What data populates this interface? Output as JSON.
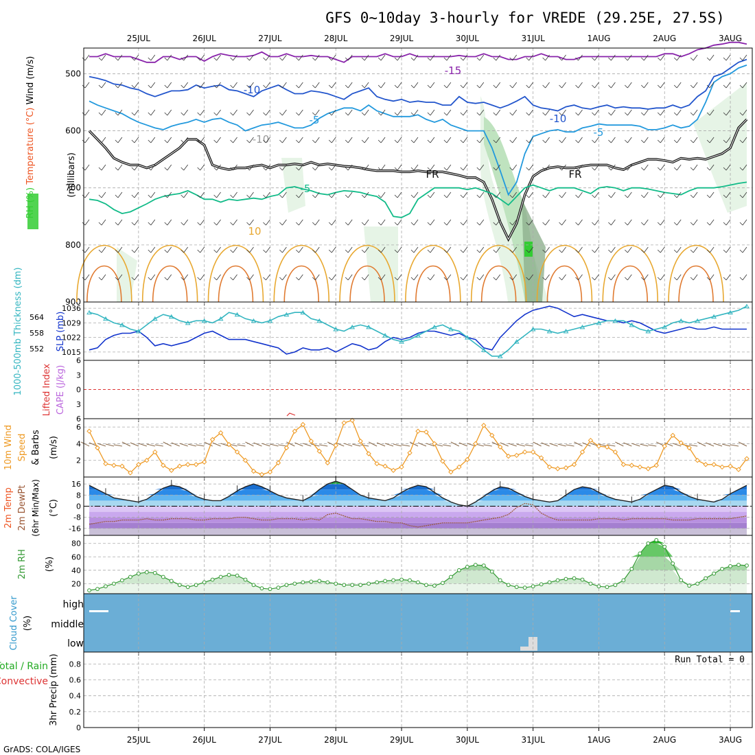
{
  "title": "GFS 0~10day 3-hourly for VREDE (29.25E, 27.5S)",
  "footer": "GrADS: COLA/IGES",
  "dates": [
    "25JUL",
    "26JUL",
    "27JUL",
    "28JUL",
    "29JUL",
    "30JUL",
    "31JUL",
    "1AUG",
    "2AUG",
    "3AUG"
  ],
  "colors": {
    "grid": "#aaaaaa",
    "rh_light": "#e6f4e6",
    "rh_mid": "#bfe3bf",
    "rh_dark": "#8fb08f",
    "rh_green": "#33cc33",
    "cloud": "#6baed6"
  },
  "chart_data": [
    {
      "type": "contour",
      "panel": "upper-air",
      "ylabel_parts": [
        "RH (%)",
        "Temperature (°C)",
        "Wind (m/s)"
      ],
      "ylabel_unit": "(millibars)",
      "yticks": [
        500,
        600,
        700,
        800,
        900
      ],
      "ylim": [
        900,
        455
      ],
      "contour_labels": [
        "-15",
        "-10",
        "-10",
        "-5",
        "-5",
        "-10",
        "FR",
        "FR",
        "-5",
        "10",
        "10"
      ],
      "series": [
        {
          "name": "-15",
          "color": "#8822aa",
          "values": [
            470,
            470,
            465,
            470,
            470,
            470,
            475,
            480,
            480,
            470,
            470,
            475,
            470,
            470,
            478,
            470,
            465,
            468,
            470,
            470,
            468,
            462,
            470,
            470,
            465,
            470,
            470,
            468,
            470,
            470,
            475,
            480,
            470,
            470,
            470,
            470,
            465,
            470,
            470,
            465,
            470,
            470,
            470,
            470,
            470,
            468,
            470,
            470,
            465,
            470,
            470,
            475,
            475,
            470,
            470,
            465,
            470,
            470,
            475,
            475,
            470,
            470,
            470,
            470,
            470,
            470,
            470,
            470,
            470,
            470,
            465,
            465,
            470,
            465,
            458,
            455,
            450,
            448,
            445,
            445,
            448
          ]
        },
        {
          "name": "-10",
          "color": "#2255cc",
          "values": [
            505,
            508,
            512,
            518,
            520,
            525,
            528,
            535,
            540,
            535,
            530,
            530,
            528,
            520,
            525,
            522,
            520,
            528,
            530,
            535,
            540,
            530,
            525,
            520,
            528,
            535,
            535,
            530,
            532,
            535,
            540,
            545,
            535,
            530,
            525,
            540,
            545,
            548,
            545,
            550,
            548,
            550,
            550,
            555,
            555,
            540,
            550,
            552,
            550,
            555,
            560,
            555,
            548,
            540,
            555,
            560,
            562,
            565,
            558,
            555,
            560,
            562,
            558,
            555,
            560,
            558,
            560,
            560,
            562,
            560,
            560,
            555,
            560,
            555,
            540,
            530,
            505,
            500,
            490,
            480,
            475
          ]
        },
        {
          "name": "-5",
          "color": "#2299dd",
          "values": [
            548,
            555,
            560,
            565,
            570,
            578,
            585,
            590,
            595,
            598,
            592,
            588,
            585,
            580,
            585,
            580,
            578,
            585,
            590,
            600,
            595,
            590,
            588,
            585,
            590,
            595,
            595,
            590,
            578,
            570,
            565,
            560,
            560,
            565,
            555,
            565,
            570,
            575,
            575,
            575,
            572,
            580,
            585,
            580,
            590,
            595,
            600,
            600,
            600,
            630,
            670,
            712,
            690,
            640,
            610,
            605,
            600,
            598,
            602,
            602,
            595,
            592,
            588,
            590,
            590,
            590,
            590,
            592,
            598,
            598,
            595,
            590,
            595,
            592,
            580,
            550,
            515,
            505,
            500,
            490,
            485
          ]
        },
        {
          "name": "FR",
          "color": "#111111",
          "values": [
            600,
            615,
            630,
            648,
            655,
            660,
            660,
            665,
            660,
            650,
            640,
            630,
            615,
            615,
            625,
            660,
            665,
            668,
            665,
            665,
            662,
            660,
            665,
            660,
            660,
            658,
            660,
            655,
            660,
            658,
            660,
            662,
            663,
            665,
            668,
            670,
            670,
            670,
            672,
            672,
            670,
            672,
            672,
            672,
            675,
            678,
            682,
            682,
            690,
            720,
            760,
            790,
            762,
            712,
            680,
            670,
            665,
            663,
            665,
            665,
            662,
            660,
            660,
            660,
            665,
            668,
            660,
            655,
            650,
            650,
            652,
            655,
            648,
            650,
            648,
            650,
            645,
            640,
            630,
            595,
            580
          ]
        },
        {
          "name": "5",
          "color": "#11bb88",
          "values": [
            720,
            722,
            728,
            738,
            745,
            742,
            735,
            728,
            720,
            715,
            712,
            710,
            705,
            712,
            720,
            720,
            725,
            720,
            722,
            720,
            718,
            720,
            715,
            712,
            700,
            698,
            702,
            705,
            710,
            712,
            708,
            705,
            706,
            708,
            712,
            715,
            725,
            750,
            752,
            745,
            720,
            710,
            700,
            700,
            700,
            700,
            703,
            700,
            705,
            710,
            720,
            730,
            715,
            700,
            695,
            700,
            705,
            700,
            700,
            700,
            705,
            710,
            700,
            698,
            700,
            705,
            700,
            700,
            702,
            705,
            708,
            710,
            712,
            705,
            700,
            700,
            700,
            698,
            695,
            692,
            690
          ]
        }
      ]
    },
    {
      "type": "line",
      "panel": "slp-thickness",
      "ylabel": "SLP (mb)",
      "ylabel2": "1000-500mb Thickness (dm)",
      "yticks": [
        1015,
        1022,
        1029,
        1036
      ],
      "yticks2": [
        552,
        558,
        564
      ],
      "ylim": [
        1011,
        1039
      ],
      "series": [
        {
          "name": "SLP",
          "color": "#1133cc",
          "values": [
            1016,
            1017,
            1021,
            1023,
            1024,
            1024,
            1025,
            1022,
            1018,
            1019,
            1018,
            1019,
            1020,
            1022,
            1024,
            1025,
            1023,
            1021,
            1021,
            1021,
            1020,
            1019,
            1018,
            1017,
            1014,
            1015,
            1017,
            1016,
            1016,
            1017,
            1015,
            1017,
            1019,
            1018,
            1016,
            1017,
            1020,
            1022,
            1021,
            1022,
            1024,
            1025,
            1025,
            1024,
            1023,
            1024,
            1022,
            1021,
            1017,
            1016,
            1022,
            1026,
            1030,
            1033,
            1035,
            1036,
            1037,
            1036,
            1034,
            1032,
            1033,
            1032,
            1031,
            1030,
            1030,
            1029,
            1030,
            1029,
            1027,
            1025,
            1024,
            1025,
            1026,
            1027,
            1026,
            1026,
            1027,
            1026,
            1026,
            1026,
            1026
          ]
        },
        {
          "name": "Thickness",
          "color": "#33b5c0",
          "values": [
            1034,
            1033,
            1031,
            1029,
            1028,
            1026,
            1025,
            1028,
            1031,
            1033,
            1032,
            1030,
            1029,
            1030,
            1030,
            1029,
            1031,
            1034,
            1033,
            1031,
            1030,
            1029,
            1030,
            1032,
            1033,
            1034,
            1034,
            1031,
            1030,
            1028,
            1026,
            1025,
            1027,
            1028,
            1027,
            1025,
            1023,
            1021,
            1020,
            1021,
            1023,
            1025,
            1027,
            1028,
            1026,
            1025,
            1022,
            1019,
            1016,
            1013,
            1013,
            1016,
            1020,
            1023,
            1026,
            1026,
            1025,
            1024,
            1025,
            1026,
            1027,
            1028,
            1029,
            1030,
            1030,
            1030,
            1028,
            1026,
            1025,
            1026,
            1027,
            1029,
            1030,
            1029,
            1030,
            1031,
            1032,
            1033,
            1034,
            1035,
            1037
          ]
        }
      ]
    },
    {
      "type": "line",
      "panel": "cape-li",
      "ylabel": "Lifted Index",
      "ylabel2": "CAPE (J/kg)",
      "yticks": [
        -6,
        -3,
        0,
        3,
        6
      ],
      "ylim": [
        -6,
        6
      ],
      "reference_line": 0
    },
    {
      "type": "line",
      "panel": "wind",
      "ylabel": "10m Wind Speed & Barbs (m/s)",
      "yticks": [
        2,
        4,
        6
      ],
      "ylim": [
        0,
        7
      ],
      "series": [
        {
          "name": "10m Wind Speed",
          "color": "#ee9922",
          "values": [
            5.5,
            3.5,
            1.6,
            1.4,
            1.3,
            0.5,
            1.5,
            2.0,
            3.0,
            1.4,
            0.8,
            1.3,
            1.5,
            1.5,
            1.8,
            4.5,
            5.3,
            3.9,
            3.0,
            2.0,
            0.7,
            0.3,
            0.6,
            1.7,
            3.5,
            5.5,
            6.3,
            4.3,
            3.1,
            1.7,
            3.8,
            6.5,
            6.8,
            4.3,
            2.8,
            1.6,
            1.3,
            0.8,
            1.2,
            2.9,
            5.5,
            5.4,
            4.0,
            1.9,
            0.6,
            1.2,
            2.1,
            4.0,
            6.2,
            5.0,
            3.6,
            2.5,
            2.6,
            3.0,
            3.0,
            2.3,
            1.2,
            1.0,
            1.1,
            1.5,
            3.0,
            4.4,
            3.7,
            3.6,
            3.0,
            1.5,
            1.4,
            1.2,
            1.0,
            1.4,
            3.7,
            5.0,
            4.1,
            3.5,
            2.0,
            1.5,
            1.5,
            1.2,
            1.3,
            0.9,
            2.2
          ]
        }
      ]
    },
    {
      "type": "area",
      "panel": "temperature",
      "ylabel": "2m Temp 2m DewPt (6hr Min/Max) (°C)",
      "yticks": [
        16,
        8,
        0,
        -8,
        -16
      ],
      "ylim": [
        -21,
        21
      ],
      "series": [
        {
          "name": "2m Temp",
          "color": "#222222",
          "values": [
            15,
            12,
            9,
            6,
            5,
            4,
            3,
            5,
            9,
            13,
            15,
            14,
            11,
            7,
            5,
            4,
            4,
            7,
            11,
            14,
            16,
            14,
            11,
            8,
            6,
            5,
            4,
            7,
            12,
            16,
            18,
            16,
            12,
            8,
            6,
            5,
            4,
            6,
            10,
            13,
            15,
            14,
            10,
            6,
            3,
            1,
            0,
            3,
            7,
            11,
            14,
            13,
            10,
            7,
            5,
            4,
            3,
            4,
            8,
            12,
            14,
            13,
            10,
            7,
            5,
            4,
            3,
            5,
            9,
            12,
            15,
            14,
            10,
            7,
            5,
            4,
            3,
            5,
            9,
            12,
            15
          ]
        },
        {
          "name": "2m DewPt",
          "color": "#995533",
          "values": [
            -13,
            -12,
            -11,
            -11,
            -10,
            -10,
            -10,
            -9,
            -10,
            -10,
            -9,
            -9,
            -9,
            -10,
            -10,
            -9,
            -9,
            -9,
            -8,
            -8,
            -9,
            -10,
            -10,
            -9,
            -9,
            -9,
            -10,
            -9,
            -10,
            -6,
            -5,
            -7,
            -9,
            -9,
            -10,
            -11,
            -11,
            -12,
            -12,
            -14,
            -15,
            -14,
            -13,
            -12,
            -12,
            -12,
            -12,
            -11,
            -10,
            -9,
            -8,
            -6,
            -1,
            2,
            1,
            -5,
            -8,
            -10,
            -10,
            -10,
            -10,
            -10,
            -9,
            -9,
            -9,
            -10,
            -9,
            -9,
            -9,
            -9,
            -9,
            -10,
            -10,
            -10,
            -9,
            -9,
            -9,
            -9,
            -9,
            -8,
            -7
          ]
        }
      ]
    },
    {
      "type": "area",
      "panel": "humidity",
      "ylabel": "2m RH (%)",
      "yticks": [
        20,
        40,
        60,
        80
      ],
      "ylim": [
        5,
        92
      ],
      "series": [
        {
          "name": "2m RH",
          "color": "#339933",
          "values": [
            10,
            12,
            16,
            20,
            25,
            30,
            35,
            37,
            36,
            30,
            24,
            18,
            15,
            18,
            22,
            26,
            30,
            33,
            32,
            26,
            18,
            13,
            12,
            14,
            18,
            20,
            22,
            23,
            24,
            22,
            20,
            18,
            18,
            18,
            20,
            22,
            24,
            25,
            26,
            25,
            22,
            18,
            17,
            21,
            30,
            40,
            45,
            48,
            47,
            38,
            25,
            18,
            15,
            14,
            16,
            19,
            22,
            25,
            27,
            28,
            26,
            20,
            16,
            15,
            18,
            25,
            42,
            65,
            80,
            85,
            75,
            50,
            25,
            17,
            20,
            28,
            35,
            42,
            46,
            48,
            47
          ]
        }
      ]
    },
    {
      "type": "area",
      "panel": "cloud",
      "ylabel": "Cloud Cover (%)",
      "yticks": [
        "high",
        "middle",
        "low"
      ]
    },
    {
      "type": "bar",
      "panel": "precip",
      "ylabel": "3hr Precip (mm)",
      "legend": [
        "Total / Rain",
        "Convective"
      ],
      "yticks": [
        0,
        0.2,
        0.4,
        0.6,
        0.8
      ],
      "ylim": [
        0,
        0.95
      ],
      "annotation": "Run Total = 0"
    }
  ]
}
